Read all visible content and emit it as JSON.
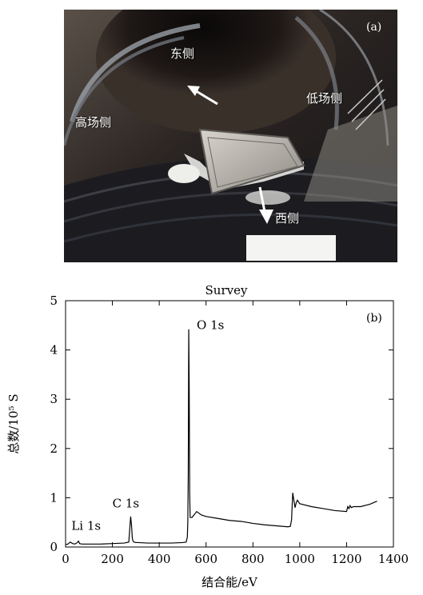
{
  "figure": {
    "panel_a": {
      "tag": "(a)",
      "labels": {
        "east_side": "东侧",
        "low_field_side": "低场侧",
        "high_field_side": "高场侧",
        "west_side": "西侧"
      }
    },
    "panel_b": {
      "tag": "(b)"
    }
  },
  "chart_data": {
    "type": "line",
    "title": "Survey",
    "xlabel": "结合能/eV",
    "ylabel": "总数/10⁵ S",
    "xlim": [
      0,
      1400
    ],
    "ylim": [
      0,
      5
    ],
    "xticks": [
      0,
      200,
      400,
      600,
      800,
      1000,
      1200,
      1400
    ],
    "yticks": [
      0,
      1,
      2,
      3,
      4,
      5
    ],
    "grid": false,
    "annotations": [
      {
        "text": "O 1s",
        "x": 560,
        "y": 4.42
      },
      {
        "text": "C 1s",
        "x": 200,
        "y": 0.8
      },
      {
        "text": "Li 1s",
        "x": 25,
        "y": 0.35
      }
    ],
    "series": [
      {
        "x": [
          0,
          10,
          20,
          30,
          40,
          50,
          55,
          60,
          70,
          80,
          100,
          150,
          200,
          250,
          270,
          278,
          282,
          285,
          288,
          292,
          300,
          310,
          350,
          400,
          450,
          500,
          515,
          520,
          522,
          524,
          526,
          528,
          530,
          532,
          540,
          560,
          580,
          600,
          650,
          700,
          750,
          800,
          850,
          900,
          950,
          960,
          965,
          970,
          975,
          980,
          985,
          990,
          1000,
          1050,
          1100,
          1150,
          1200,
          1205,
          1210,
          1215,
          1220,
          1230,
          1260,
          1300,
          1330
        ],
        "y": [
          0.05,
          0.06,
          0.1,
          0.07,
          0.06,
          0.09,
          0.12,
          0.07,
          0.06,
          0.06,
          0.06,
          0.06,
          0.07,
          0.08,
          0.1,
          0.62,
          0.42,
          0.18,
          0.12,
          0.1,
          0.09,
          0.09,
          0.08,
          0.08,
          0.08,
          0.09,
          0.1,
          0.2,
          0.5,
          1.5,
          4.42,
          3.2,
          1.1,
          0.6,
          0.6,
          0.72,
          0.65,
          0.62,
          0.58,
          0.54,
          0.52,
          0.48,
          0.45,
          0.43,
          0.41,
          0.42,
          0.55,
          1.1,
          0.95,
          0.8,
          0.9,
          0.95,
          0.88,
          0.82,
          0.78,
          0.74,
          0.72,
          0.82,
          0.78,
          0.84,
          0.8,
          0.82,
          0.82,
          0.87,
          0.93
        ]
      }
    ]
  }
}
